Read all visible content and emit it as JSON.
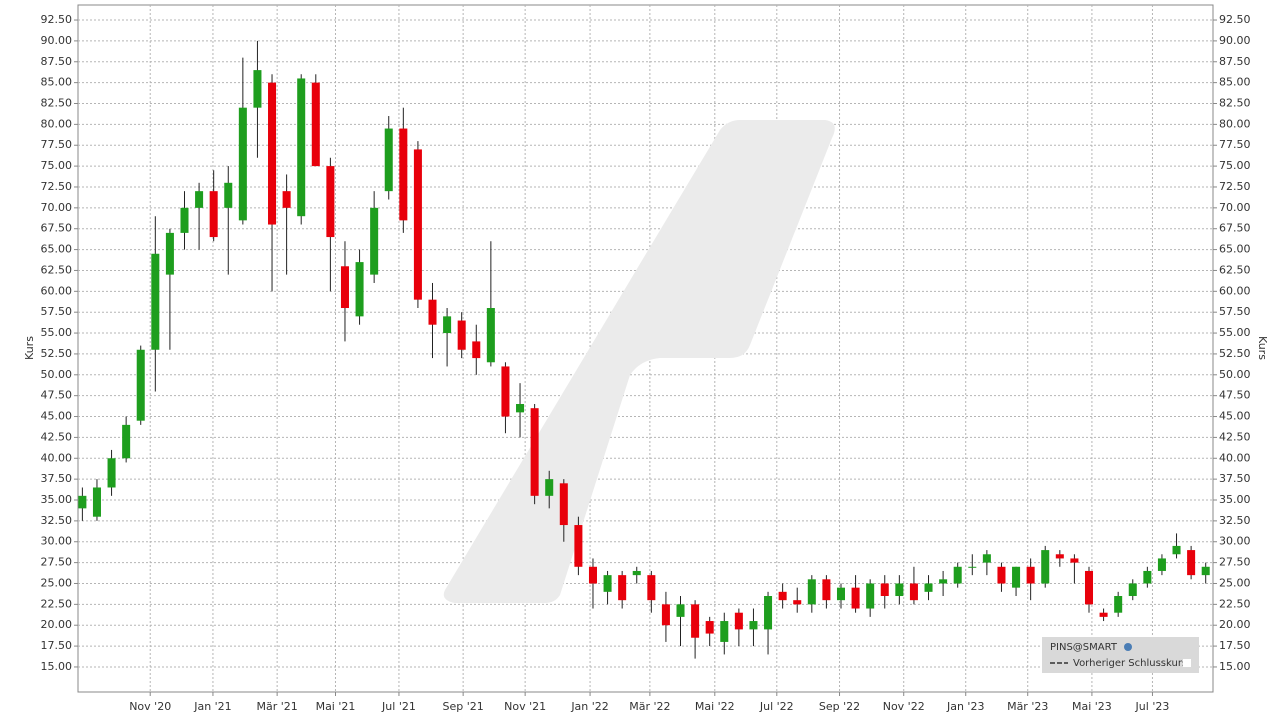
{
  "chart_data": {
    "type": "candlestick",
    "y_label": "Kurs",
    "legend": {
      "symbol": "PINS@SMART",
      "previous_close": "Vorheriger Schlusskurs"
    },
    "up_color": "#1e9e1e",
    "down_color": "#e8000b",
    "grid": true,
    "xlim": [
      -0.6,
      155
    ],
    "xticks": [
      {
        "value": 9.3,
        "label": "Nov '20"
      },
      {
        "value": 17.9,
        "label": "Jan '21"
      },
      {
        "value": 26.7,
        "label": "Mär '21"
      },
      {
        "value": 34.7,
        "label": "Mai '21"
      },
      {
        "value": 43.4,
        "label": "Jul '21"
      },
      {
        "value": 52.2,
        "label": "Sep '21"
      },
      {
        "value": 60.7,
        "label": "Nov '21"
      },
      {
        "value": 69.6,
        "label": "Jan '22"
      },
      {
        "value": 77.8,
        "label": "Mär '22"
      },
      {
        "value": 86.7,
        "label": "Mai '22"
      },
      {
        "value": 95.2,
        "label": "Jul '22"
      },
      {
        "value": 103.8,
        "label": "Sep '22"
      },
      {
        "value": 112.6,
        "label": "Nov '22"
      },
      {
        "value": 121.1,
        "label": "Jan '23"
      },
      {
        "value": 129.6,
        "label": "Mär '23"
      },
      {
        "value": 138.4,
        "label": "Mai '23"
      },
      {
        "value": 146.7,
        "label": "Jul '23"
      }
    ],
    "ylim": [
      12,
      94.3
    ],
    "yticks": [
      {
        "value": 15,
        "label": "15.00"
      },
      {
        "value": 17.5,
        "label": "17.50"
      },
      {
        "value": 20,
        "label": "20.00"
      },
      {
        "value": 22.5,
        "label": "22.50"
      },
      {
        "value": 25,
        "label": "25.00"
      },
      {
        "value": 27.5,
        "label": "27.50"
      },
      {
        "value": 30,
        "label": "30.00"
      },
      {
        "value": 32.5,
        "label": "32.50"
      },
      {
        "value": 35,
        "label": "35.00"
      },
      {
        "value": 37.5,
        "label": "37.50"
      },
      {
        "value": 40,
        "label": "40.00"
      },
      {
        "value": 42.5,
        "label": "42.50"
      },
      {
        "value": 45,
        "label": "45.00"
      },
      {
        "value": 47.5,
        "label": "47.50"
      },
      {
        "value": 50,
        "label": "50.00"
      },
      {
        "value": 52.5,
        "label": "52.50"
      },
      {
        "value": 55,
        "label": "55.00"
      },
      {
        "value": 57.5,
        "label": "57.50"
      },
      {
        "value": 60,
        "label": "60.00"
      },
      {
        "value": 62.5,
        "label": "62.50"
      },
      {
        "value": 65,
        "label": "65.00"
      },
      {
        "value": 67.5,
        "label": "67.50"
      },
      {
        "value": 70,
        "label": "70.00"
      },
      {
        "value": 72.5,
        "label": "72.50"
      },
      {
        "value": 75,
        "label": "75.00"
      },
      {
        "value": 77.5,
        "label": "77.50"
      },
      {
        "value": 80,
        "label": "80.00"
      },
      {
        "value": 82.5,
        "label": "82.50"
      },
      {
        "value": 85,
        "label": "85.00"
      },
      {
        "value": 87.5,
        "label": "87.50"
      },
      {
        "value": 90,
        "label": "90.00"
      },
      {
        "value": 92.5,
        "label": "92.50"
      }
    ],
    "x": [
      0,
      2,
      4,
      6,
      8,
      10,
      12,
      14,
      16,
      18,
      20,
      22,
      24,
      26,
      28,
      30,
      32,
      34,
      36,
      38,
      40,
      42,
      44,
      46,
      48,
      50,
      52,
      54,
      56,
      58,
      60,
      62,
      64,
      66,
      68,
      70,
      72,
      74,
      76,
      78,
      80,
      82,
      84,
      86,
      88,
      90,
      92,
      94,
      96,
      98,
      100,
      102,
      104,
      106,
      108,
      110,
      112,
      114,
      116,
      118,
      120,
      122,
      124,
      126,
      128,
      130,
      132,
      134,
      136,
      138,
      140,
      142,
      144,
      146,
      148,
      150,
      152,
      154
    ],
    "open": [
      34,
      33,
      36.5,
      40,
      44.5,
      53,
      62,
      67,
      70,
      72,
      70,
      68.5,
      82,
      85,
      72,
      69,
      85,
      75,
      63,
      57,
      62,
      72,
      79.5,
      77,
      59,
      55,
      56.5,
      54,
      51.5,
      51,
      45.5,
      46,
      35.5,
      37,
      32,
      27,
      24,
      26,
      26,
      26,
      22.5,
      21,
      22.5,
      20.5,
      18,
      21.5,
      19.5,
      19.5,
      24,
      23,
      22.5,
      25.5,
      23,
      24.5,
      22,
      25,
      23.5,
      25,
      24,
      25,
      25,
      27,
      27.5,
      27,
      24.5,
      27,
      25,
      28.5,
      28,
      26.5,
      21.5,
      21.5,
      23.5,
      25,
      26.5,
      28.5,
      29,
      26
    ],
    "high": [
      36.5,
      37.5,
      41,
      45,
      53.5,
      69,
      67.5,
      72,
      73,
      74.5,
      75,
      88,
      90,
      86,
      74,
      86,
      86,
      76,
      66,
      65,
      72,
      81,
      82,
      78,
      61,
      58,
      57.5,
      56,
      66,
      51.5,
      49,
      46.5,
      38.5,
      37.5,
      33,
      28,
      26.5,
      26.5,
      27,
      26.5,
      24,
      23.5,
      23,
      21,
      21.5,
      22,
      22,
      24,
      25,
      24.5,
      26,
      26,
      25,
      26,
      25.5,
      26,
      26,
      27,
      26,
      26.5,
      27.5,
      28.5,
      29,
      27.5,
      27,
      28,
      29.5,
      29,
      28.5,
      27,
      22,
      24,
      25.5,
      27,
      28.5,
      31,
      29.5,
      27.5
    ],
    "low": [
      32.5,
      32.5,
      35.5,
      39.5,
      44,
      48,
      53,
      65,
      65,
      66,
      62,
      68,
      76,
      60,
      62,
      68,
      75,
      60,
      54,
      56,
      61,
      71,
      67,
      58,
      52,
      51,
      52,
      50,
      51,
      43,
      42.5,
      34.5,
      34,
      30,
      26,
      22,
      22.5,
      22,
      25,
      21.5,
      18,
      17.5,
      16,
      17.5,
      16.5,
      17.5,
      17.5,
      16.5,
      22,
      21.5,
      21.5,
      22,
      22,
      21.5,
      21,
      22,
      22.5,
      22.5,
      23,
      23.5,
      24.5,
      26,
      26,
      24,
      23.5,
      23,
      24.5,
      27,
      25,
      21.5,
      20.5,
      21,
      23,
      24.5,
      26,
      28,
      25.5,
      25
    ],
    "close": [
      35.5,
      36.5,
      40,
      44,
      53,
      64.5,
      67,
      70,
      72,
      66.5,
      73,
      82,
      86.5,
      68,
      70,
      85.5,
      75,
      66.5,
      58,
      63.5,
      70,
      79.5,
      68.5,
      59,
      56,
      57,
      53,
      52,
      58,
      45,
      46.5,
      35.5,
      37.5,
      32,
      27,
      25,
      26,
      23,
      26.5,
      23,
      20,
      22.5,
      18.5,
      19,
      20.5,
      19.5,
      20.5,
      23.5,
      23,
      22.5,
      25.5,
      23,
      24.5,
      22,
      25,
      23.5,
      25,
      23,
      25,
      25.5,
      27,
      27,
      28.5,
      25,
      27,
      25,
      29,
      28,
      27.5,
      22.5,
      21,
      23.5,
      25,
      26.5,
      28,
      29.5,
      26,
      27
    ]
  }
}
